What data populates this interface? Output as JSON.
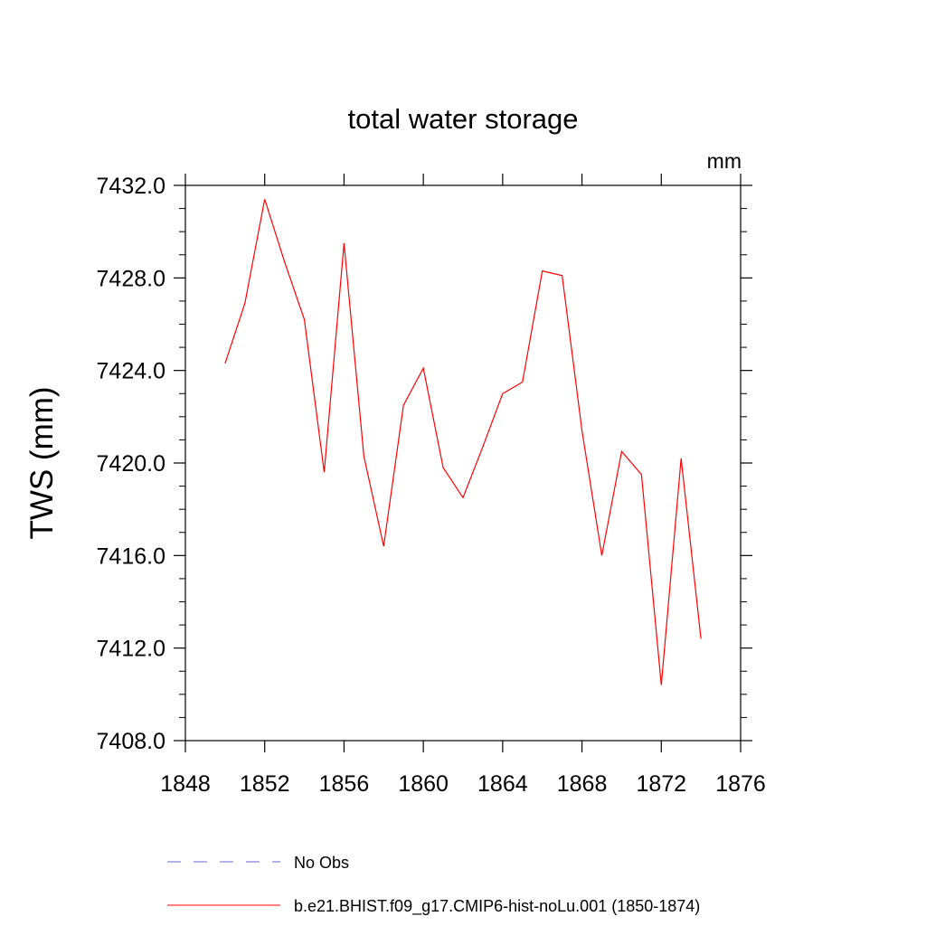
{
  "chart_data": {
    "type": "line",
    "title": "total water storage",
    "units_label": "mm",
    "ylabel": "TWS  (mm)",
    "xlabel": "",
    "xlim": [
      1848,
      1876
    ],
    "ylim": [
      7408.0,
      7432.0
    ],
    "x_ticks": [
      1848,
      1852,
      1856,
      1860,
      1864,
      1868,
      1872,
      1876
    ],
    "x_tick_labels": [
      "1848",
      "1852",
      "1856",
      "1860",
      "1864",
      "1868",
      "1872",
      "1876"
    ],
    "y_ticks": [
      7408.0,
      7412.0,
      7416.0,
      7420.0,
      7424.0,
      7428.0,
      7432.0
    ],
    "y_tick_labels": [
      "7408.0",
      "7412.0",
      "7416.0",
      "7420.0",
      "7424.0",
      "7428.0",
      "7432.0"
    ],
    "grid": false,
    "legend_position": "bottom",
    "series": [
      {
        "name": "No Obs",
        "color": "#6666cc",
        "style": "dashed",
        "x": [],
        "y": []
      },
      {
        "name": "b.e21.BHIST.f09_g17.CMIP6-hist-noLu.001 (1850-1874)",
        "color": "#ff0000",
        "style": "solid",
        "x": [
          1850,
          1851,
          1852,
          1853,
          1854,
          1855,
          1856,
          1857,
          1858,
          1859,
          1860,
          1861,
          1862,
          1863,
          1864,
          1865,
          1866,
          1867,
          1868,
          1869,
          1870,
          1871,
          1872,
          1873,
          1874
        ],
        "y": [
          7424.3,
          7426.9,
          7431.4,
          7428.7,
          7426.2,
          7419.6,
          7429.5,
          7420.3,
          7416.4,
          7422.5,
          7424.1,
          7419.8,
          7418.5,
          7420.7,
          7423.0,
          7423.5,
          7428.3,
          7428.1,
          7421.4,
          7416.0,
          7420.5,
          7419.5,
          7410.4,
          7420.2,
          7412.4
        ]
      }
    ]
  }
}
